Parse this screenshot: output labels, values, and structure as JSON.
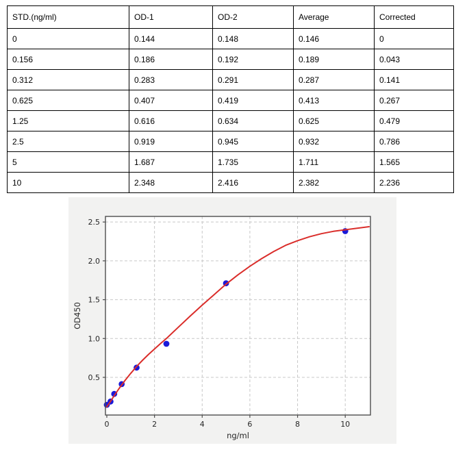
{
  "table": {
    "headers": [
      "STD.(ng/ml)",
      "OD-1",
      "OD-2",
      "Average",
      "Corrected"
    ],
    "rows": [
      [
        "0",
        "0.144",
        "0.148",
        "0.146",
        "0"
      ],
      [
        "0.156",
        "0.186",
        "0.192",
        "0.189",
        "0.043"
      ],
      [
        "0.312",
        "0.283",
        "0.291",
        "0.287",
        "0.141"
      ],
      [
        "0.625",
        "0.407",
        "0.419",
        "0.413",
        "0.267"
      ],
      [
        "1.25",
        "0.616",
        "0.634",
        "0.625",
        "0.479"
      ],
      [
        "2.5",
        "0.919",
        "0.945",
        "0.932",
        "0.786"
      ],
      [
        "5",
        "1.687",
        "1.735",
        "1.711",
        "1.565"
      ],
      [
        "10",
        "2.348",
        "2.416",
        "2.382",
        "2.236"
      ]
    ]
  },
  "chart_data": {
    "type": "scatter",
    "title": "",
    "xlabel": "ng/ml",
    "ylabel": "OD450",
    "xlim": [
      -0.057,
      11.057
    ],
    "ylim": [
      0.015,
      2.572
    ],
    "x_ticks": [
      0,
      2,
      4,
      6,
      8,
      10
    ],
    "y_ticks": [
      0.5,
      1.0,
      1.5,
      2.0,
      2.5
    ],
    "grid": "dashed",
    "legend_position": "none",
    "series": [
      {
        "name": "standard-points",
        "type": "scatter",
        "color": "#1a1ad9",
        "x": [
          0,
          0.156,
          0.312,
          0.625,
          1.25,
          2.5,
          5,
          10
        ],
        "y": [
          0.146,
          0.189,
          0.287,
          0.413,
          0.625,
          0.932,
          1.711,
          2.382
        ]
      },
      {
        "name": "fit-curve",
        "type": "line",
        "color": "#da2d2a",
        "points": [
          [
            0,
            0.12
          ],
          [
            0.25,
            0.235
          ],
          [
            0.5,
            0.35
          ],
          [
            0.75,
            0.455
          ],
          [
            1.0,
            0.55
          ],
          [
            1.25,
            0.64
          ],
          [
            1.5,
            0.72
          ],
          [
            1.75,
            0.795
          ],
          [
            2.0,
            0.865
          ],
          [
            2.25,
            0.935
          ],
          [
            2.5,
            1.0
          ],
          [
            3.0,
            1.145
          ],
          [
            3.5,
            1.29
          ],
          [
            4.0,
            1.43
          ],
          [
            4.5,
            1.565
          ],
          [
            5.0,
            1.7
          ],
          [
            5.5,
            1.82
          ],
          [
            6.0,
            1.93
          ],
          [
            6.5,
            2.03
          ],
          [
            7.0,
            2.12
          ],
          [
            7.5,
            2.2
          ],
          [
            8.0,
            2.26
          ],
          [
            8.5,
            2.31
          ],
          [
            9.0,
            2.35
          ],
          [
            9.5,
            2.38
          ],
          [
            10.0,
            2.4
          ],
          [
            10.5,
            2.42
          ],
          [
            11.0,
            2.44
          ]
        ]
      }
    ]
  },
  "colors": {
    "panel_bg": "#f2f2f1",
    "plot_bg": "#ffffff",
    "grid": "#c8c8c8",
    "frame": "#4d4d4d",
    "tick_text": "#262626",
    "table_border": "#000000"
  }
}
